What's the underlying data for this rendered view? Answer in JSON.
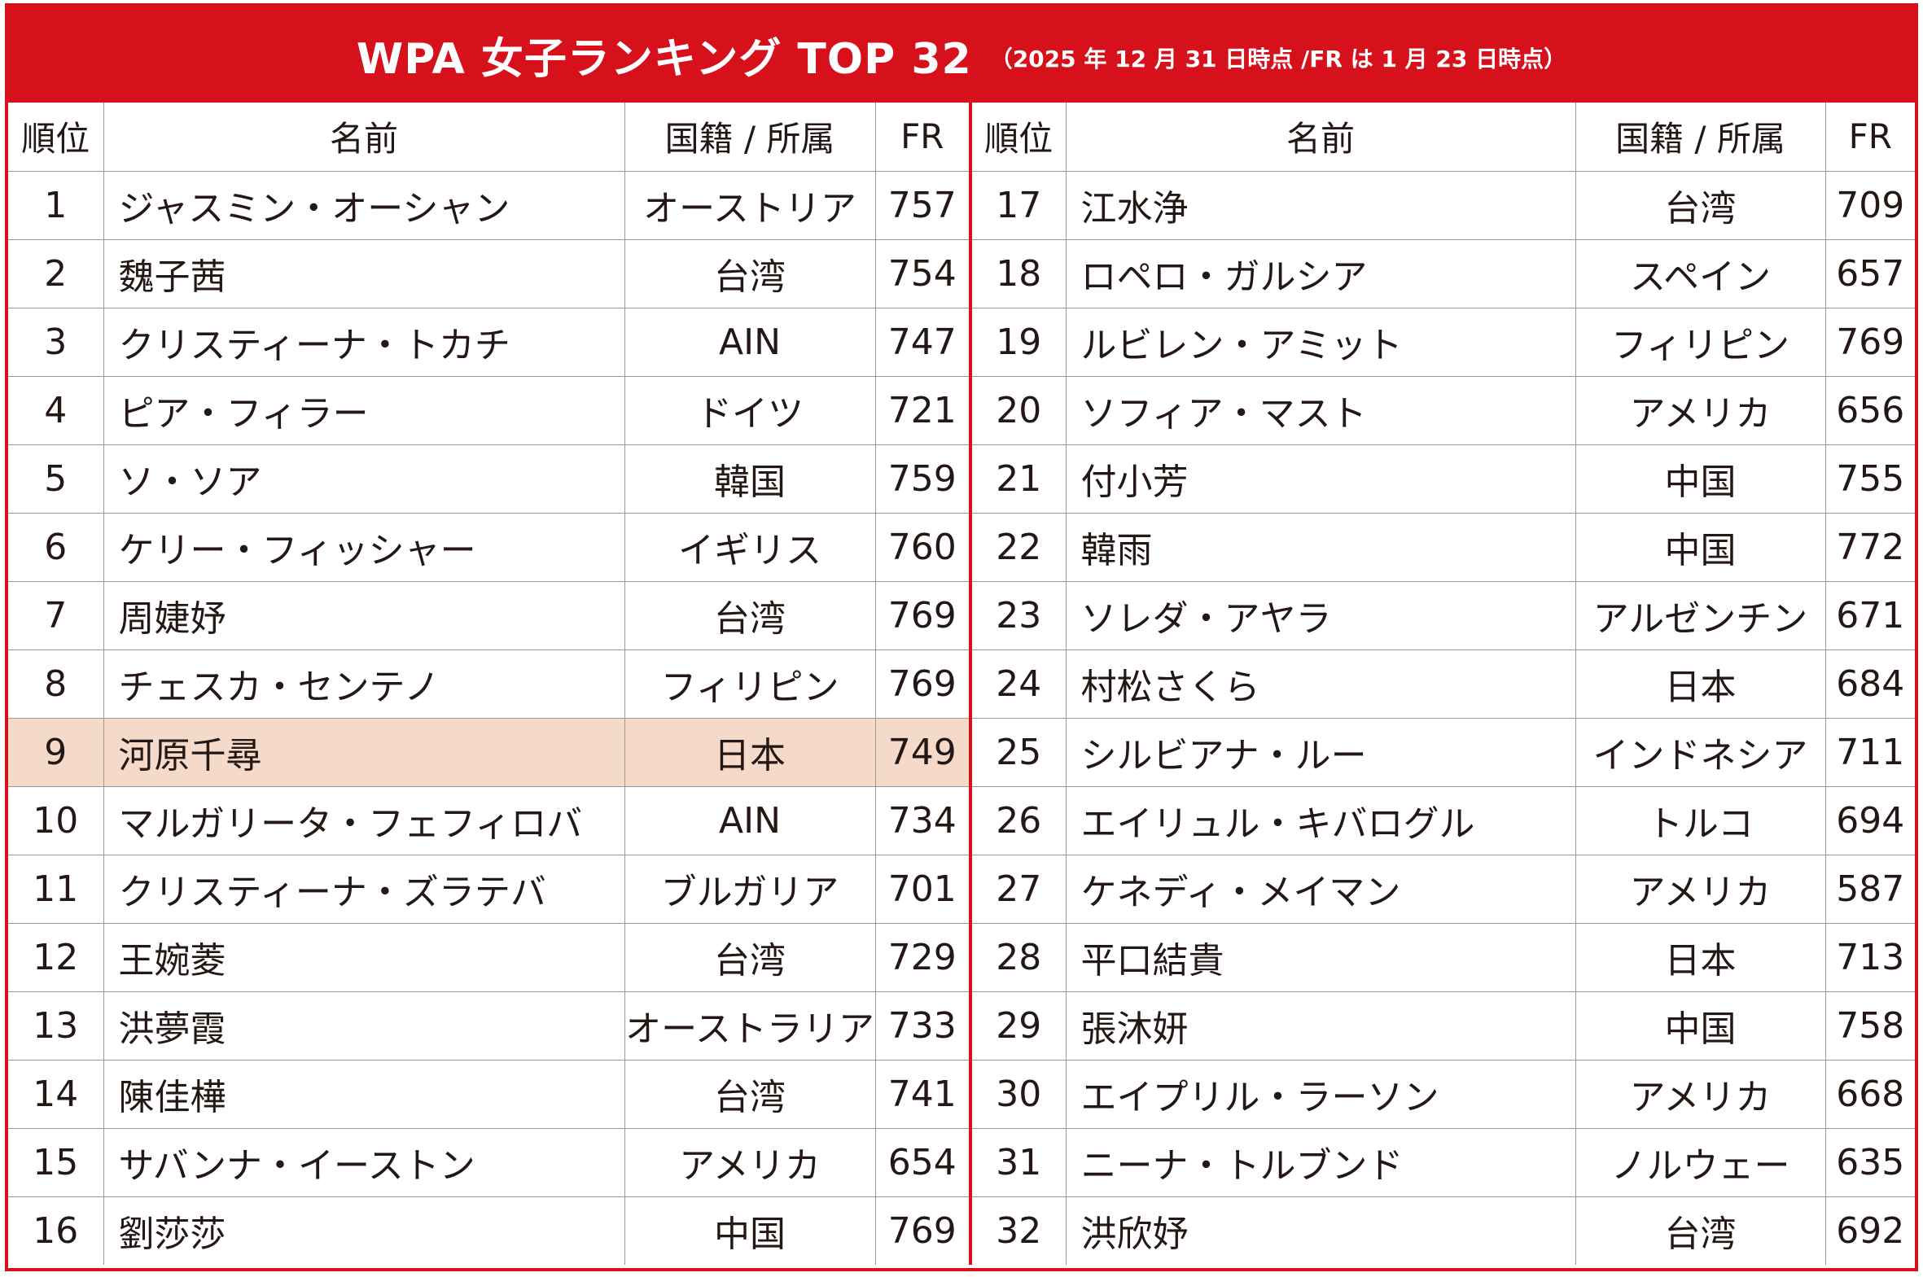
{
  "title": "WPA 女子ランキング TOP 32",
  "subtitle": "（2025 年 12 月 31 日時点 /FR は 1 月 23 日時点）",
  "headers": {
    "rank": "順位",
    "name": "名前",
    "country": "国籍 / 所属",
    "fr": "FR"
  },
  "left": [
    {
      "rank": "1",
      "name": "ジャスミン・オーシャン",
      "country": "オーストリア",
      "fr": "757"
    },
    {
      "rank": "2",
      "name": "魏子茜",
      "country": "台湾",
      "fr": "754"
    },
    {
      "rank": "3",
      "name": "クリスティーナ・トカチ",
      "country": "AIN",
      "fr": "747"
    },
    {
      "rank": "4",
      "name": "ピア・フィラー",
      "country": "ドイツ",
      "fr": "721"
    },
    {
      "rank": "5",
      "name": "ソ・ソア",
      "country": "韓国",
      "fr": "759"
    },
    {
      "rank": "6",
      "name": "ケリー・フィッシャー",
      "country": "イギリス",
      "fr": "760"
    },
    {
      "rank": "7",
      "name": "周婕妤",
      "country": "台湾",
      "fr": "769"
    },
    {
      "rank": "8",
      "name": "チェスカ・センテノ",
      "country": "フィリピン",
      "fr": "769"
    },
    {
      "rank": "9",
      "name": "河原千尋",
      "country": "日本",
      "fr": "749"
    },
    {
      "rank": "10",
      "name": "マルガリータ・フェフィロバ",
      "country": "AIN",
      "fr": "734"
    },
    {
      "rank": "11",
      "name": "クリスティーナ・ズラテバ",
      "country": "ブルガリア",
      "fr": "701"
    },
    {
      "rank": "12",
      "name": "王婉菱",
      "country": "台湾",
      "fr": "729"
    },
    {
      "rank": "13",
      "name": "洪夢霞",
      "country": "オーストラリア",
      "fr": "733"
    },
    {
      "rank": "14",
      "name": "陳佳樺",
      "country": "台湾",
      "fr": "741"
    },
    {
      "rank": "15",
      "name": "サバンナ・イーストン",
      "country": "アメリカ",
      "fr": "654"
    },
    {
      "rank": "16",
      "name": "劉莎莎",
      "country": "中国",
      "fr": "769"
    }
  ],
  "right": [
    {
      "rank": "17",
      "name": "江水浄",
      "country": "台湾",
      "fr": "709"
    },
    {
      "rank": "18",
      "name": "ロペロ・ガルシア",
      "country": "スペイン",
      "fr": "657"
    },
    {
      "rank": "19",
      "name": "ルビレン・アミット",
      "country": "フィリピン",
      "fr": "769"
    },
    {
      "rank": "20",
      "name": "ソフィア・マスト",
      "country": "アメリカ",
      "fr": "656"
    },
    {
      "rank": "21",
      "name": "付小芳",
      "country": "中国",
      "fr": "755"
    },
    {
      "rank": "22",
      "name": "韓雨",
      "country": "中国",
      "fr": "772"
    },
    {
      "rank": "23",
      "name": "ソレダ・アヤラ",
      "country": "アルゼンチン",
      "fr": "671"
    },
    {
      "rank": "24",
      "name": "村松さくら",
      "country": "日本",
      "fr": "684"
    },
    {
      "rank": "25",
      "name": "シルビアナ・ルー",
      "country": "インドネシア",
      "fr": "711"
    },
    {
      "rank": "26",
      "name": "エイリュル・キバログル",
      "country": "トルコ",
      "fr": "694"
    },
    {
      "rank": "27",
      "name": "ケネディ・メイマン",
      "country": "アメリカ",
      "fr": "587"
    },
    {
      "rank": "28",
      "name": "平口結貴",
      "country": "日本",
      "fr": "713"
    },
    {
      "rank": "29",
      "name": "張沐妍",
      "country": "中国",
      "fr": "758"
    },
    {
      "rank": "30",
      "name": "エイプリル・ラーソン",
      "country": "アメリカ",
      "fr": "668"
    },
    {
      "rank": "31",
      "name": "ニーナ・トルブンド",
      "country": "ノルウェー",
      "fr": "635"
    },
    {
      "rank": "32",
      "name": "洪欣妤",
      "country": "台湾",
      "fr": "692"
    }
  ],
  "highlighted_rank": "9",
  "colors": {
    "accent": "#d7111b",
    "highlight": "#f5d9c9",
    "text": "#231815"
  }
}
